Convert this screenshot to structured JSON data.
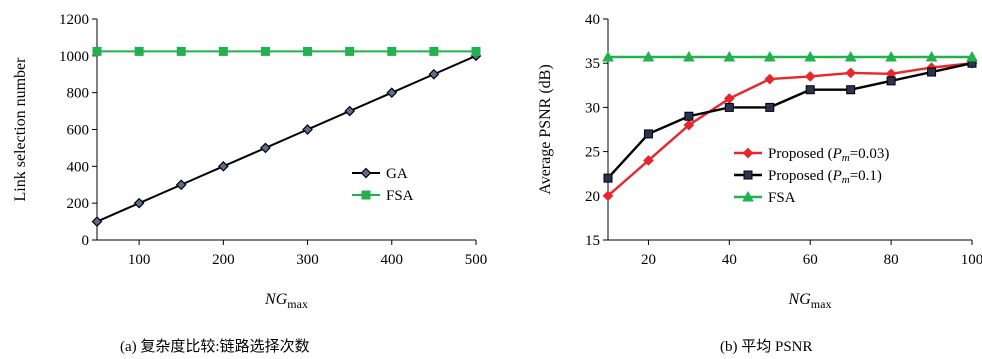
{
  "chart_data": [
    {
      "type": "line",
      "xlabel": "NGmax",
      "xlabel_main": "NG",
      "xlabel_sub": "max",
      "ylabel": "Link selection number",
      "xlim": [
        50,
        500
      ],
      "ylim": [
        0,
        1200
      ],
      "xticks": [
        100,
        200,
        300,
        400,
        500
      ],
      "yticks": [
        0,
        200,
        400,
        600,
        800,
        1000,
        1200
      ],
      "x": [
        50,
        100,
        150,
        200,
        250,
        300,
        350,
        400,
        450,
        500
      ],
      "series": [
        {
          "name": "GA",
          "color": "#000000",
          "marker": "diamond",
          "values": [
            100,
            200,
            300,
            400,
            500,
            600,
            700,
            800,
            900,
            1000
          ]
        },
        {
          "name": "FSA",
          "color": "#22b14c",
          "marker": "square",
          "values": [
            1024,
            1024,
            1024,
            1024,
            1024,
            1024,
            1024,
            1024,
            1024,
            1024
          ]
        }
      ],
      "legend": "right",
      "caption": "(a)  复杂度比较:链路选择次数"
    },
    {
      "type": "line",
      "xlabel": "NGmax",
      "xlabel_main": "NG",
      "xlabel_sub": "max",
      "ylabel": "Average PSNR (dB)",
      "xlim": [
        10,
        100
      ],
      "ylim": [
        15,
        40
      ],
      "xticks": [
        20,
        40,
        60,
        80,
        100
      ],
      "yticks": [
        15,
        20,
        25,
        30,
        35,
        40
      ],
      "x": [
        10,
        20,
        30,
        40,
        50,
        60,
        70,
        80,
        90,
        100
      ],
      "series": [
        {
          "name": "Proposed (Pm=0.03)",
          "label_prefix": "Proposed (",
          "label_p": "P",
          "label_m": "m",
          "label_suffix": "=0.03)",
          "color": "#e8262b",
          "marker": "diamond",
          "values": [
            20,
            24,
            28,
            31,
            33.2,
            33.5,
            33.9,
            33.8,
            34.5,
            35
          ]
        },
        {
          "name": "Proposed (Pm=0.1)",
          "label_prefix": "Proposed (",
          "label_p": "P",
          "label_m": "m",
          "label_suffix": "=0.1)",
          "color": "#000000",
          "marker": "square",
          "values": [
            22,
            27,
            29,
            30,
            30,
            32,
            32,
            33,
            34,
            35
          ]
        },
        {
          "name": "FSA",
          "label_prefix": "FSA",
          "label_p": "",
          "label_m": "",
          "label_suffix": "",
          "color": "#22b14c",
          "marker": "triangle",
          "values": [
            35.7,
            35.7,
            35.7,
            35.7,
            35.7,
            35.7,
            35.7,
            35.7,
            35.7,
            35.7
          ]
        }
      ],
      "legend": "center-right",
      "caption": "(b)  平均 PSNR"
    }
  ]
}
